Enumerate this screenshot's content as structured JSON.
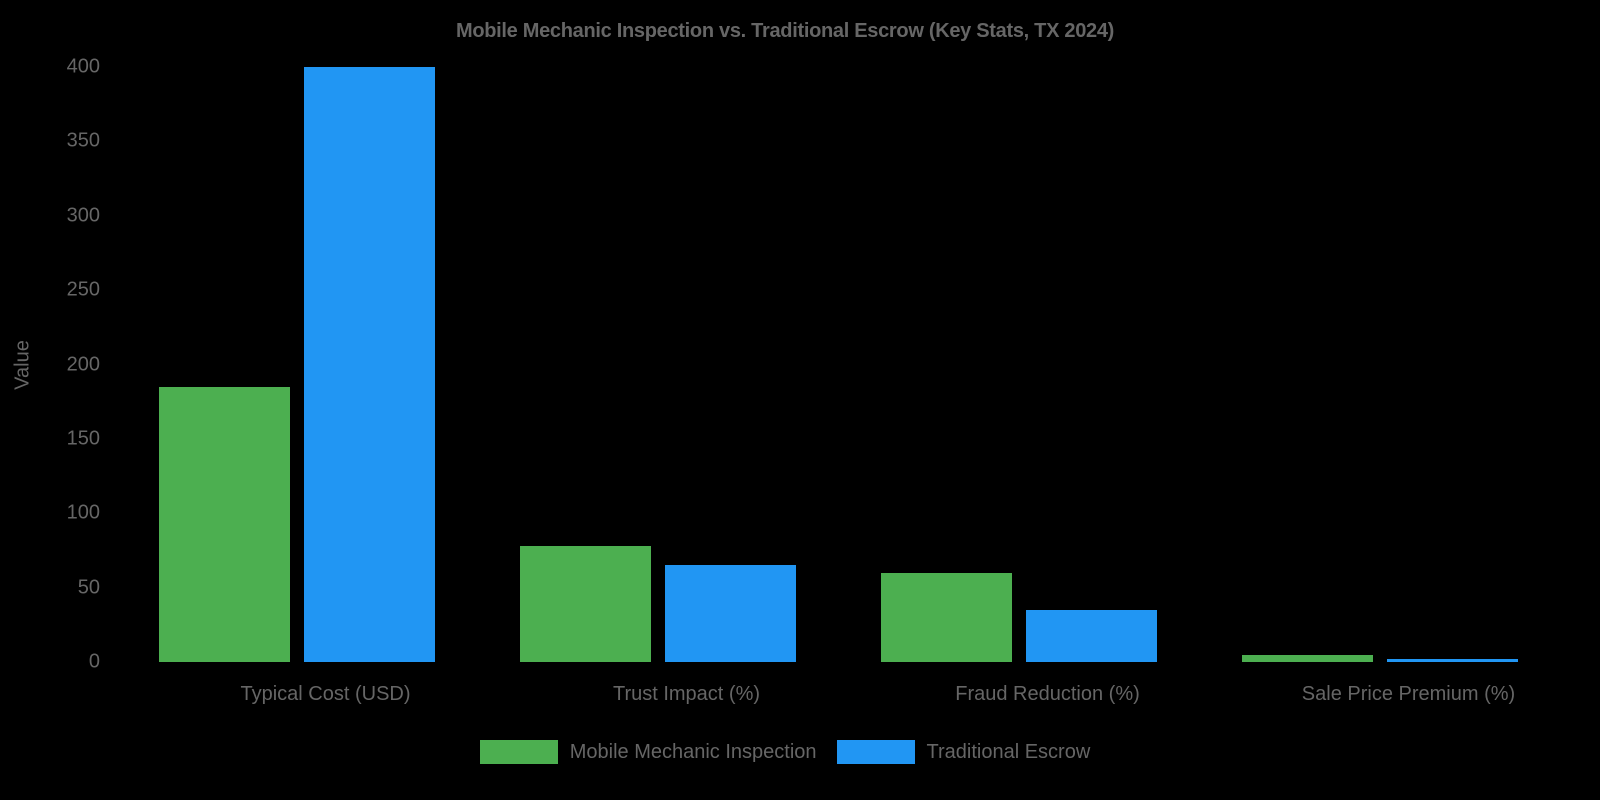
{
  "chart_data": {
    "type": "bar",
    "title": "Mobile Mechanic Inspection vs. Traditional Escrow (Key Stats, TX 2024)",
    "xlabel": "",
    "ylabel": "Value",
    "ylim": [
      0,
      400
    ],
    "yticks": [
      "0",
      "50",
      "100",
      "150",
      "200",
      "250",
      "300",
      "350",
      "400"
    ],
    "categories": [
      "Typical Cost (USD)",
      "Trust Impact (%)",
      "Fraud Reduction (%)",
      "Sale Price Premium (%)"
    ],
    "series": [
      {
        "name": "Mobile Mechanic Inspection",
        "color": "#4CAF50",
        "values": [
          185,
          78,
          60,
          5
        ]
      },
      {
        "name": "Traditional Escrow",
        "color": "#2196F3",
        "values": [
          400,
          65,
          35,
          2
        ]
      }
    ],
    "grid": false,
    "legend_position": "bottom"
  }
}
